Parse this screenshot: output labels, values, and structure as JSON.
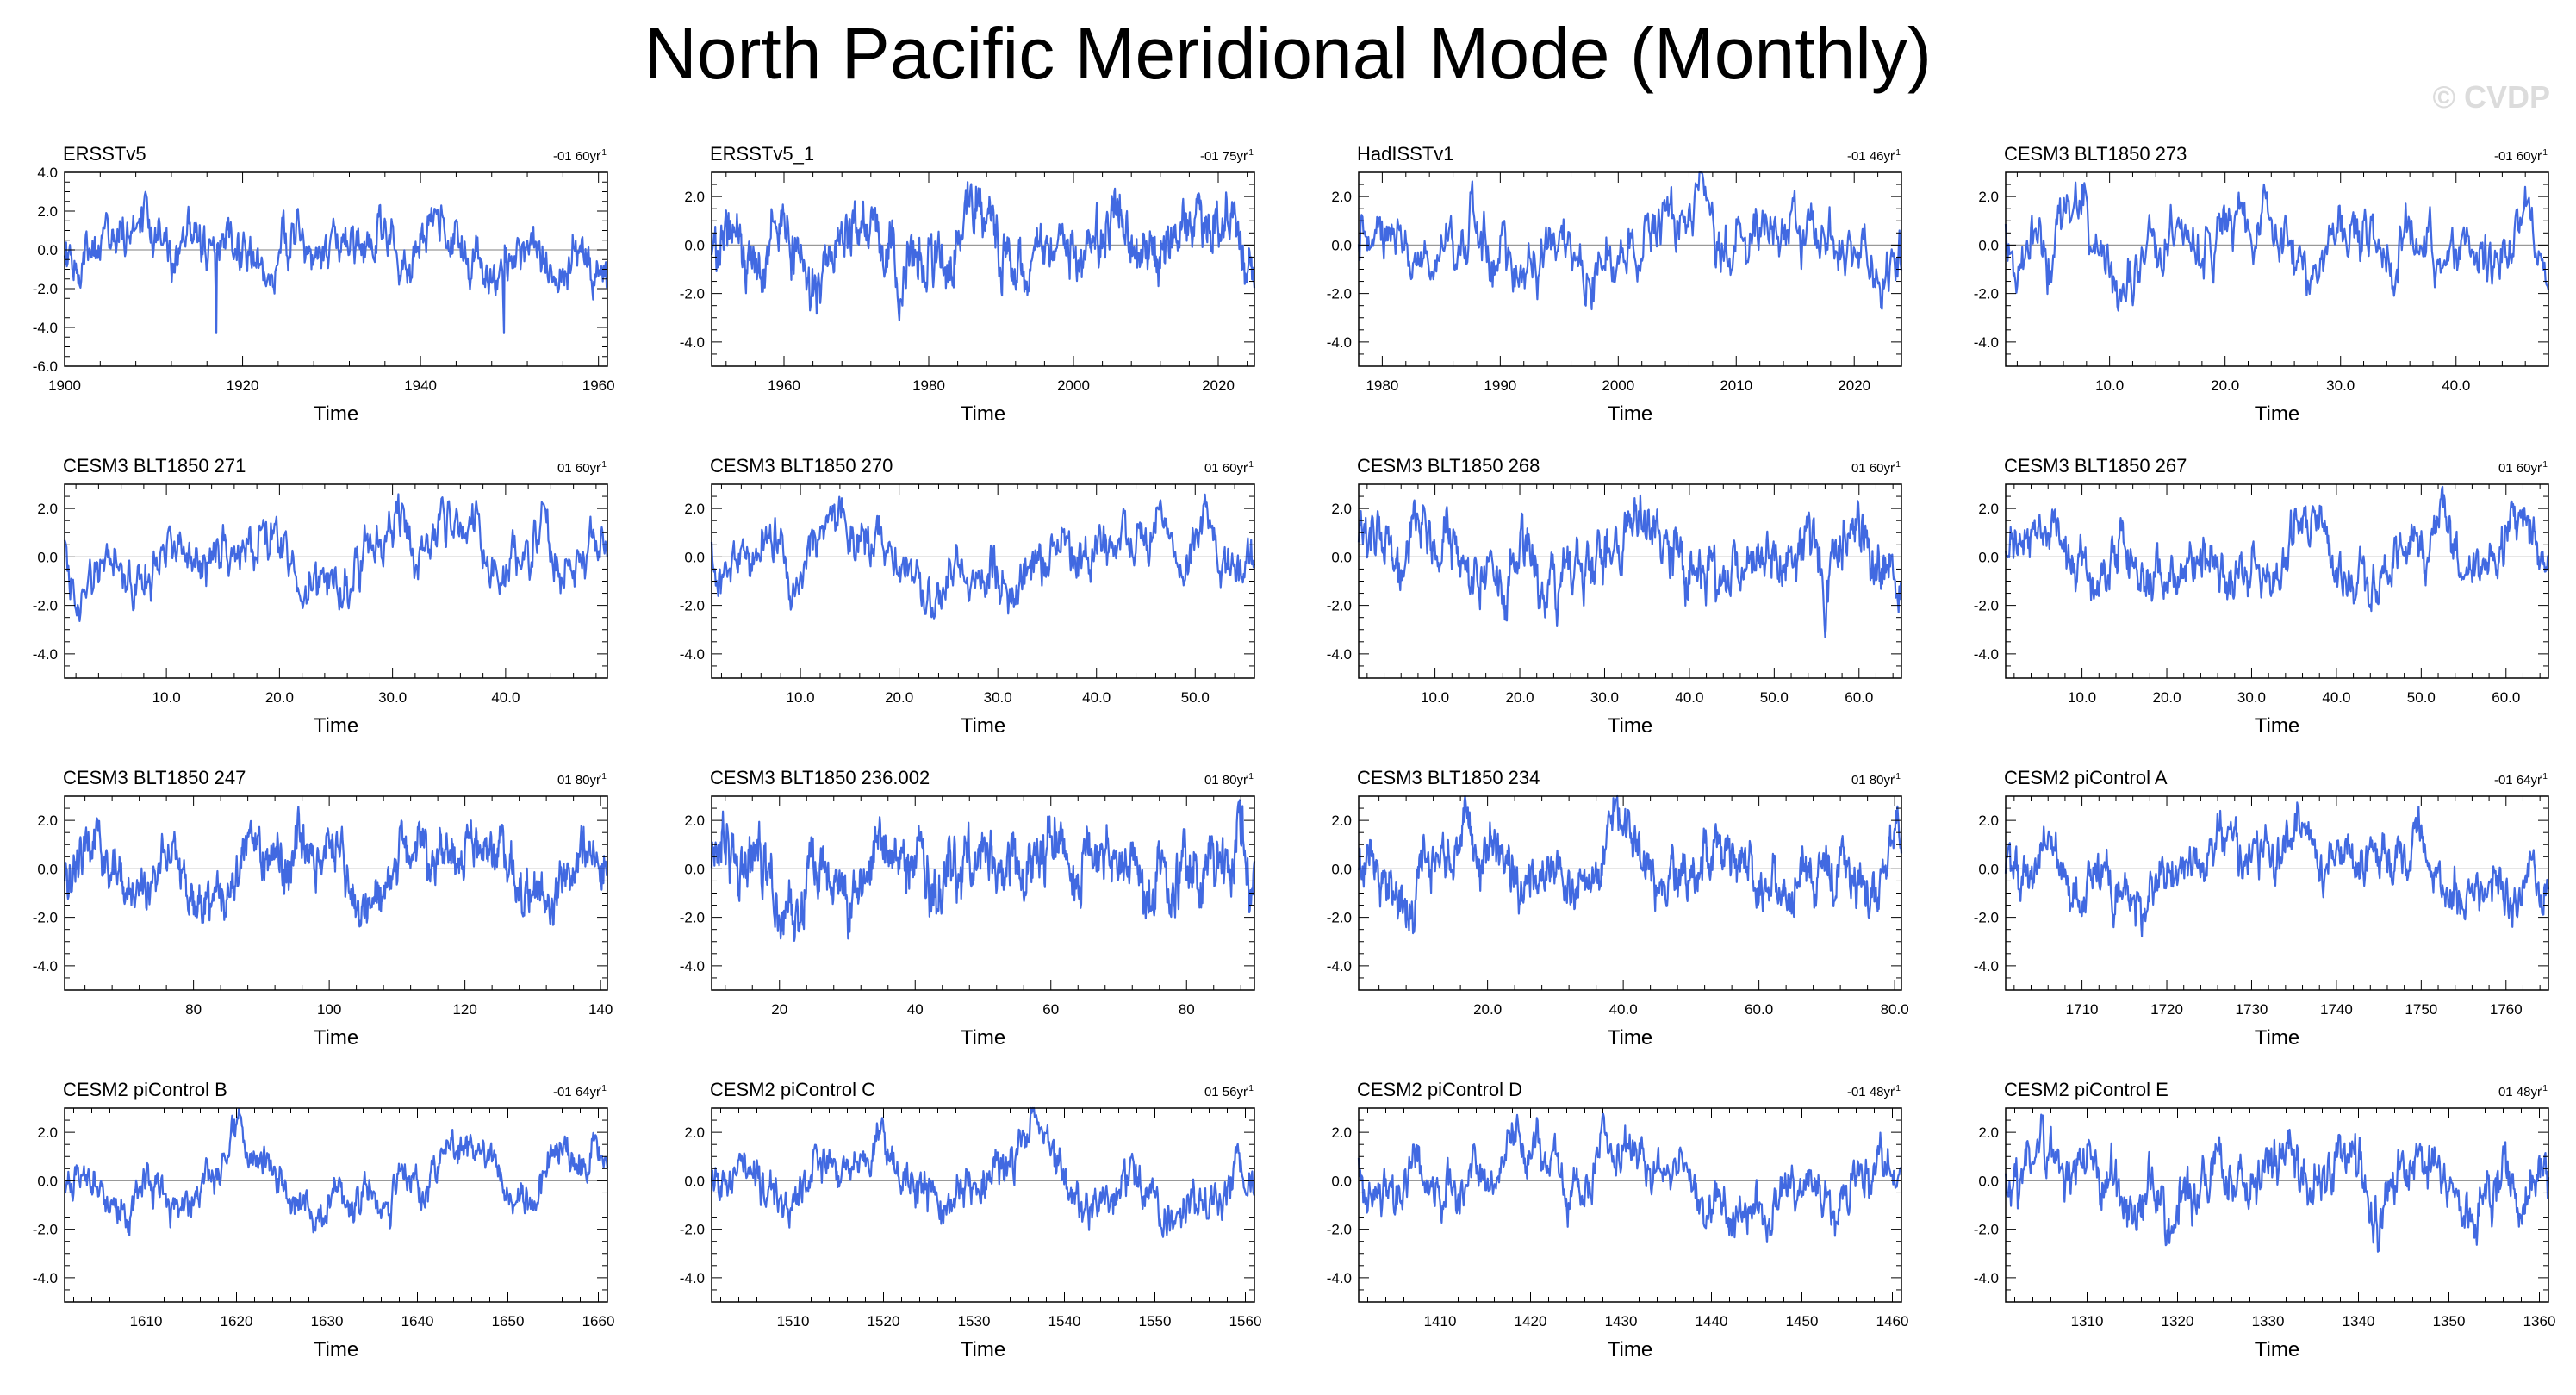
{
  "title": "North Pacific Meridional Mode (Monthly)",
  "watermark": "© CVDP",
  "colors": {
    "line": "#4169e1",
    "zero": "#999999",
    "axis": "#000000"
  },
  "chart_data": [
    {
      "type": "line",
      "name": "ERSSTv5",
      "trend": "-01 60yr",
      "title": "ERSSTv5",
      "xlabel": "Time",
      "ylabel": "",
      "xlim": [
        1900,
        1961
      ],
      "ylim": [
        -6,
        4
      ],
      "xticks": [
        1900,
        1920,
        1940,
        1960
      ],
      "yticks": [
        4,
        2,
        0,
        -2,
        -4,
        -6
      ],
      "xdec": 0,
      "ydec": 1,
      "n": 720,
      "seed": 11,
      "spikes": [
        [
          0.28,
          -4.3
        ],
        [
          0.81,
          -4.3
        ]
      ]
    },
    {
      "type": "line",
      "name": "ERSSTv5_1",
      "trend": "-01 75yr",
      "title": "ERSSTv5_1",
      "xlabel": "Time",
      "ylabel": "",
      "xlim": [
        1950,
        2025
      ],
      "ylim": [
        -5,
        3
      ],
      "xticks": [
        1960,
        1980,
        2000,
        2020
      ],
      "yticks": [
        2,
        0,
        -2,
        -4
      ],
      "xdec": 0,
      "ydec": 1,
      "n": 900,
      "seed": 12,
      "spikes": []
    },
    {
      "type": "line",
      "name": "HadISSTv1",
      "trend": "-01 46yr",
      "title": "HadISSTv1",
      "xlabel": "Time",
      "ylabel": "",
      "xlim": [
        1978,
        2024
      ],
      "ylim": [
        -5,
        3
      ],
      "xticks": [
        1980,
        1990,
        2000,
        2010,
        2020
      ],
      "yticks": [
        2,
        0,
        -2,
        -4
      ],
      "xdec": 0,
      "ydec": 1,
      "n": 560,
      "seed": 13,
      "spikes": []
    },
    {
      "type": "line",
      "name": "CESM3 BLT1850 273",
      "trend": "-01 60yr",
      "title": "CESM3 BLT1850 273",
      "xlabel": "Time",
      "ylabel": "",
      "xlim": [
        1,
        48
      ],
      "ylim": [
        -5,
        3
      ],
      "xticks": [
        10,
        20,
        30,
        40
      ],
      "yticks": [
        2,
        0,
        -2,
        -4
      ],
      "xdec": 1,
      "ydec": 1,
      "n": 560,
      "seed": 14,
      "spikes": []
    },
    {
      "type": "line",
      "name": "CESM3 BLT1850 271",
      "trend": "01 60yr",
      "title": "CESM3 BLT1850 271",
      "xlabel": "Time",
      "ylabel": "",
      "xlim": [
        1,
        49
      ],
      "ylim": [
        -5,
        3
      ],
      "xticks": [
        10,
        20,
        30,
        40
      ],
      "yticks": [
        2,
        0,
        -2,
        -4
      ],
      "xdec": 1,
      "ydec": 1,
      "n": 580,
      "seed": 15,
      "spikes": []
    },
    {
      "type": "line",
      "name": "CESM3 BLT1850 270",
      "trend": "01 60yr",
      "title": "CESM3 BLT1850 270",
      "xlabel": "Time",
      "ylabel": "",
      "xlim": [
        1,
        56
      ],
      "ylim": [
        -5,
        3
      ],
      "xticks": [
        10,
        20,
        30,
        40,
        50
      ],
      "yticks": [
        2,
        0,
        -2,
        -4
      ],
      "xdec": 1,
      "ydec": 1,
      "n": 660,
      "seed": 16,
      "spikes": []
    },
    {
      "type": "line",
      "name": "CESM3 BLT1850 268",
      "trend": "01 60yr",
      "title": "CESM3 BLT1850 268",
      "xlabel": "Time",
      "ylabel": "",
      "xlim": [
        1,
        65
      ],
      "ylim": [
        -5,
        3
      ],
      "xticks": [
        10,
        20,
        30,
        40,
        50,
        60
      ],
      "yticks": [
        2,
        0,
        -2,
        -4
      ],
      "xdec": 1,
      "ydec": 1,
      "n": 770,
      "seed": 17,
      "spikes": []
    },
    {
      "type": "line",
      "name": "CESM3 BLT1850 267",
      "trend": "01 60yr",
      "title": "CESM3 BLT1850 267",
      "xlabel": "Time",
      "ylabel": "",
      "xlim": [
        1,
        65
      ],
      "ylim": [
        -5,
        3
      ],
      "xticks": [
        10,
        20,
        30,
        40,
        50,
        60
      ],
      "yticks": [
        2,
        0,
        -2,
        -4
      ],
      "xdec": 1,
      "ydec": 1,
      "n": 770,
      "seed": 18,
      "spikes": []
    },
    {
      "type": "line",
      "name": "CESM3 BLT1850 247",
      "trend": "01 80yr",
      "title": "CESM3 BLT1850 247",
      "xlabel": "Time",
      "ylabel": "",
      "xlim": [
        61,
        141
      ],
      "ylim": [
        -5,
        3
      ],
      "xticks": [
        80,
        100,
        120,
        140
      ],
      "yticks": [
        2,
        0,
        -2,
        -4
      ],
      "xdec": 0,
      "ydec": 1,
      "n": 960,
      "seed": 19,
      "spikes": []
    },
    {
      "type": "line",
      "name": "CESM3 BLT1850 236.002",
      "trend": "01 80yr",
      "title": "CESM3 BLT1850 236.002",
      "xlabel": "Time",
      "ylabel": "",
      "xlim": [
        10,
        90
      ],
      "ylim": [
        -5,
        3
      ],
      "xticks": [
        20,
        40,
        60,
        80
      ],
      "yticks": [
        2,
        0,
        -2,
        -4
      ],
      "xdec": 0,
      "ydec": 1,
      "n": 960,
      "seed": 20,
      "spikes": []
    },
    {
      "type": "line",
      "name": "CESM3 BLT1850 234",
      "trend": "01 80yr",
      "title": "CESM3 BLT1850 234",
      "xlabel": "Time",
      "ylabel": "",
      "xlim": [
        1,
        81
      ],
      "ylim": [
        -5,
        3
      ],
      "xticks": [
        20,
        40,
        60,
        80
      ],
      "yticks": [
        2,
        0,
        -2,
        -4
      ],
      "xdec": 1,
      "ydec": 1,
      "n": 960,
      "seed": 21,
      "spikes": []
    },
    {
      "type": "line",
      "name": "CESM2 piControl A",
      "trend": "-01 64yr",
      "title": "CESM2 piControl A",
      "xlabel": "Time",
      "ylabel": "",
      "xlim": [
        1701,
        1765
      ],
      "ylim": [
        -5,
        3
      ],
      "xticks": [
        1710,
        1720,
        1730,
        1740,
        1750,
        1760
      ],
      "yticks": [
        2,
        0,
        -2,
        -4
      ],
      "xdec": 0,
      "ydec": 1,
      "n": 770,
      "seed": 22,
      "spikes": []
    },
    {
      "type": "line",
      "name": "CESM2 piControl B",
      "trend": "-01 64yr",
      "title": "CESM2 piControl B",
      "xlabel": "Time",
      "ylabel": "",
      "xlim": [
        1601,
        1661
      ],
      "ylim": [
        -5,
        3
      ],
      "xticks": [
        1610,
        1620,
        1630,
        1640,
        1650,
        1660
      ],
      "yticks": [
        2,
        0,
        -2,
        -4
      ],
      "xdec": 0,
      "ydec": 1,
      "n": 730,
      "seed": 23,
      "spikes": []
    },
    {
      "type": "line",
      "name": "CESM2 piControl C",
      "trend": "01 56yr",
      "title": "CESM2 piControl C",
      "xlabel": "Time",
      "ylabel": "",
      "xlim": [
        1501,
        1561
      ],
      "ylim": [
        -5,
        3
      ],
      "xticks": [
        1510,
        1520,
        1530,
        1540,
        1550,
        1560
      ],
      "yticks": [
        2,
        0,
        -2,
        -4
      ],
      "xdec": 0,
      "ydec": 1,
      "n": 720,
      "seed": 24,
      "spikes": []
    },
    {
      "type": "line",
      "name": "CESM2 piControl D",
      "trend": "-01 48yr",
      "title": "CESM2 piControl D",
      "xlabel": "Time",
      "ylabel": "",
      "xlim": [
        1401,
        1461
      ],
      "ylim": [
        -5,
        3
      ],
      "xticks": [
        1410,
        1420,
        1430,
        1440,
        1450,
        1460
      ],
      "yticks": [
        2,
        0,
        -2,
        -4
      ],
      "xdec": 0,
      "ydec": 1,
      "n": 720,
      "seed": 25,
      "spikes": []
    },
    {
      "type": "line",
      "name": "CESM2 piControl E",
      "trend": "01 48yr",
      "title": "CESM2 piControl E",
      "xlabel": "Time",
      "ylabel": "",
      "xlim": [
        1301,
        1361
      ],
      "ylim": [
        -5,
        3
      ],
      "xticks": [
        1310,
        1320,
        1330,
        1340,
        1350,
        1360
      ],
      "yticks": [
        2,
        0,
        -2,
        -4
      ],
      "xdec": 0,
      "ydec": 1,
      "n": 720,
      "seed": 26,
      "spikes": []
    }
  ]
}
